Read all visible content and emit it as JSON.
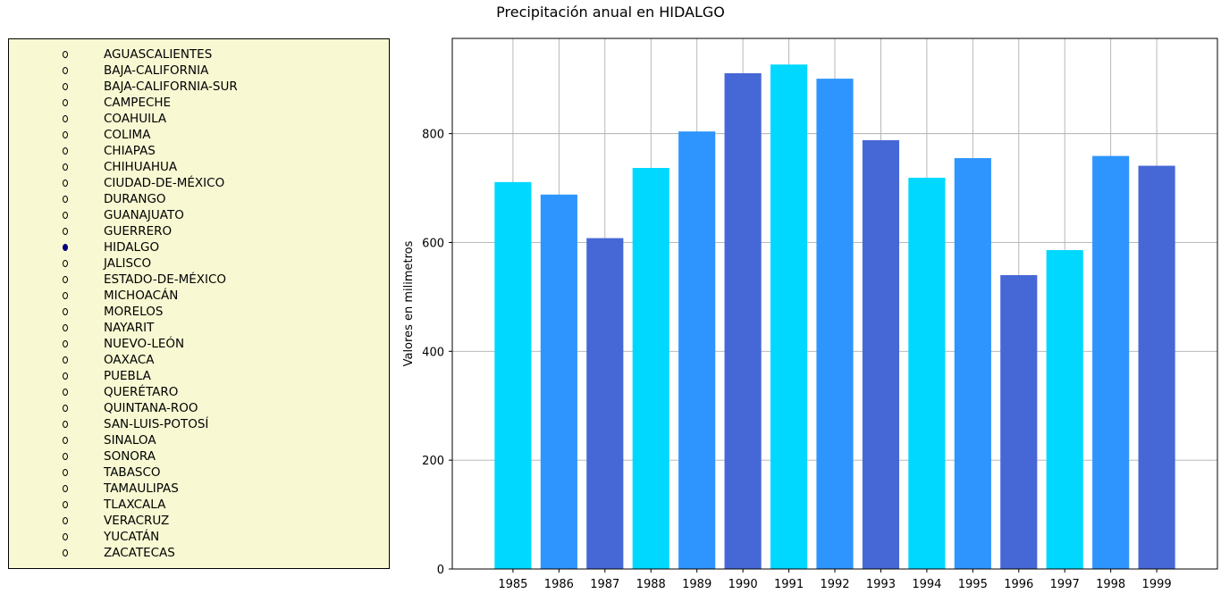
{
  "title": "Precipitación anual en HIDALGO",
  "states": [
    {
      "label": "AGUASCALIENTES",
      "selected": false
    },
    {
      "label": "BAJA-CALIFORNIA",
      "selected": false
    },
    {
      "label": "BAJA-CALIFORNIA-SUR",
      "selected": false
    },
    {
      "label": "CAMPECHE",
      "selected": false
    },
    {
      "label": "COAHUILA",
      "selected": false
    },
    {
      "label": "COLIMA",
      "selected": false
    },
    {
      "label": "CHIAPAS",
      "selected": false
    },
    {
      "label": "CHIHUAHUA",
      "selected": false
    },
    {
      "label": "CIUDAD-DE-MÉXICO",
      "selected": false
    },
    {
      "label": "DURANGO",
      "selected": false
    },
    {
      "label": "GUANAJUATO",
      "selected": false
    },
    {
      "label": "GUERRERO",
      "selected": false
    },
    {
      "label": "HIDALGO",
      "selected": true
    },
    {
      "label": "JALISCO",
      "selected": false
    },
    {
      "label": "ESTADO-DE-MÉXICO",
      "selected": false
    },
    {
      "label": "MICHOACÁN",
      "selected": false
    },
    {
      "label": "MORELOS",
      "selected": false
    },
    {
      "label": "NAYARIT",
      "selected": false
    },
    {
      "label": "NUEVO-LEÓN",
      "selected": false
    },
    {
      "label": "OAXACA",
      "selected": false
    },
    {
      "label": "PUEBLA",
      "selected": false
    },
    {
      "label": "QUERÉTARO",
      "selected": false
    },
    {
      "label": "QUINTANA-ROO",
      "selected": false
    },
    {
      "label": "SAN-LUIS-POTOSÍ",
      "selected": false
    },
    {
      "label": "SINALOA",
      "selected": false
    },
    {
      "label": "SONORA",
      "selected": false
    },
    {
      "label": "TABASCO",
      "selected": false
    },
    {
      "label": "TAMAULIPAS",
      "selected": false
    },
    {
      "label": "TLAXCALA",
      "selected": false
    },
    {
      "label": "VERACRUZ",
      "selected": false
    },
    {
      "label": "YUCATÁN",
      "selected": false
    },
    {
      "label": "ZACATECAS",
      "selected": false
    }
  ],
  "chart_data": {
    "type": "bar",
    "title": "Precipitación anual en HIDALGO",
    "xlabel": "",
    "ylabel": "Valores en milimetros",
    "categories": [
      "1985",
      "1986",
      "1987",
      "1988",
      "1989",
      "1990",
      "1991",
      "1992",
      "1993",
      "1994",
      "1995",
      "1996",
      "1997",
      "1998",
      "1999"
    ],
    "values": [
      711,
      688,
      608,
      737,
      804,
      911,
      927,
      901,
      788,
      719,
      755,
      540,
      586,
      759,
      741
    ],
    "bar_colors": [
      "#00d8ff",
      "#2e95ff",
      "#4668d6"
    ],
    "ylim": [
      0,
      975
    ],
    "yticks": [
      0,
      200,
      400,
      600,
      800
    ],
    "grid": true
  }
}
